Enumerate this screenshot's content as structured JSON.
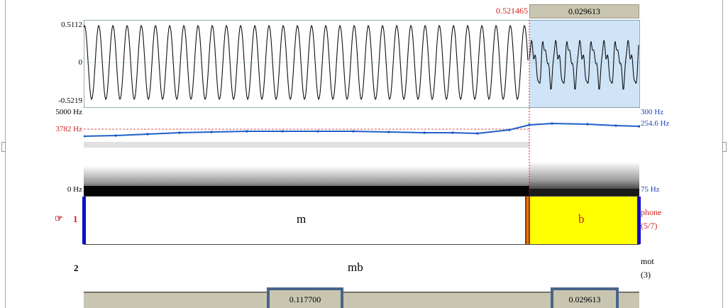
{
  "header": {
    "cursor_time": "0.521465",
    "selection_duration": "0.029613"
  },
  "waveform": {
    "max_label": "0.5112",
    "zero_label": "0",
    "min_label": "-0.5219"
  },
  "spectrogram": {
    "freq_top": "5000 Hz",
    "freq_cursor": "3782 Hz",
    "freq_bottom": "0 Hz",
    "pitch_top": "300 Hz",
    "pitch_value": "254.6 Hz",
    "pitch_bottom": "75 Hz"
  },
  "tiers": [
    {
      "number": "1",
      "pointer": "☞",
      "interval_left": "m",
      "interval_right": "b",
      "name": "phone",
      "count": "(5/7)"
    },
    {
      "number": "2",
      "interval_left": "mb",
      "name": "mot",
      "count": "(3)"
    }
  ],
  "footer": {
    "left_duration": "0.117700",
    "right_duration": "0.029613"
  },
  "colors": {
    "cursor": "#d02020",
    "pitch": "#1f5fc8",
    "selection_highlight": "#cfe4f7",
    "selected_interval": "#ffff00",
    "tier_boundary": "#1010c0",
    "status_bar": "#c8c6b0"
  }
}
